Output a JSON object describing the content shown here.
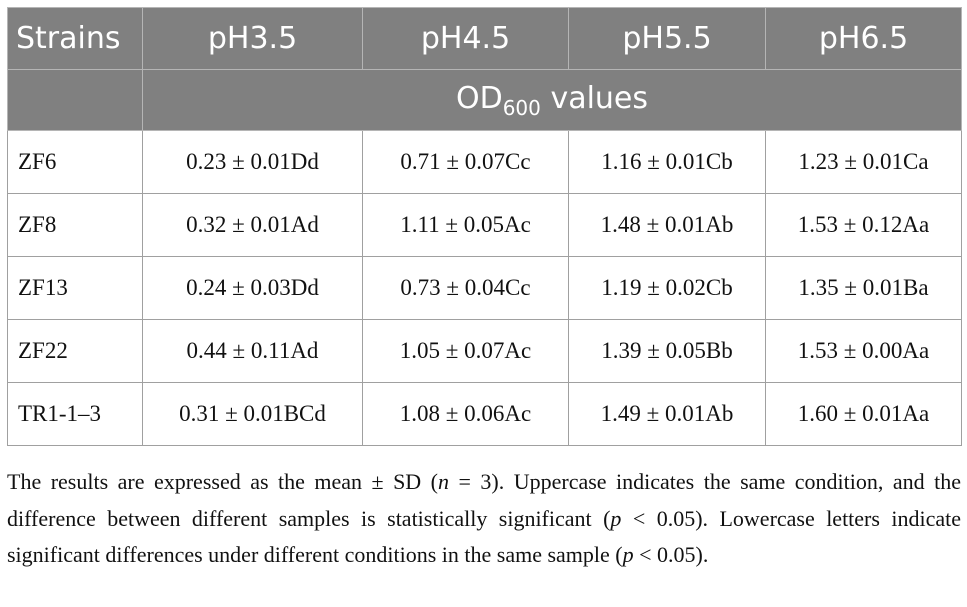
{
  "table": {
    "header": [
      "Strains",
      "pH3.5",
      "pH4.5",
      "pH5.5",
      "pH6.5"
    ],
    "subheader": {
      "text": "OD",
      "subscript": "600",
      "suffix": "values"
    },
    "rows": [
      [
        "ZF6",
        "0.23 ± 0.01Dd",
        "0.71 ± 0.07Cc",
        "1.16 ± 0.01Cb",
        "1.23 ± 0.01Ca"
      ],
      [
        "ZF8",
        "0.32 ± 0.01Ad",
        "1.11 ± 0.05Ac",
        "1.48 ± 0.01Ab",
        "1.53 ± 0.12Aa"
      ],
      [
        "ZF13",
        "0.24 ± 0.03Dd",
        "0.73 ± 0.04Cc",
        "1.19 ± 0.02Cb",
        "1.35 ± 0.01Ba"
      ],
      [
        "ZF22",
        "0.44 ± 0.11Ad",
        "1.05 ± 0.07Ac",
        "1.39 ± 0.05Bb",
        "1.53 ± 0.00Aa"
      ],
      [
        "TR1-1–3",
        "0.31 ± 0.01BCd",
        "1.08 ± 0.06Ac",
        "1.49 ± 0.01Ab",
        "1.60 ± 0.01Aa"
      ]
    ]
  },
  "footnote": [
    {
      "text": "The results are expressed as the mean ± SD ("
    },
    {
      "text": "n",
      "italic": true
    },
    {
      "text": " = 3). Uppercase indicates the same condition, and the difference between different samples is statistically significant ("
    },
    {
      "text": "p",
      "italic": true
    },
    {
      "text": " < 0.05). Lowercase letters indicate significant differences under different conditions in the same sample ("
    },
    {
      "text": "p",
      "italic": true
    },
    {
      "text": " < 0.05)."
    }
  ]
}
